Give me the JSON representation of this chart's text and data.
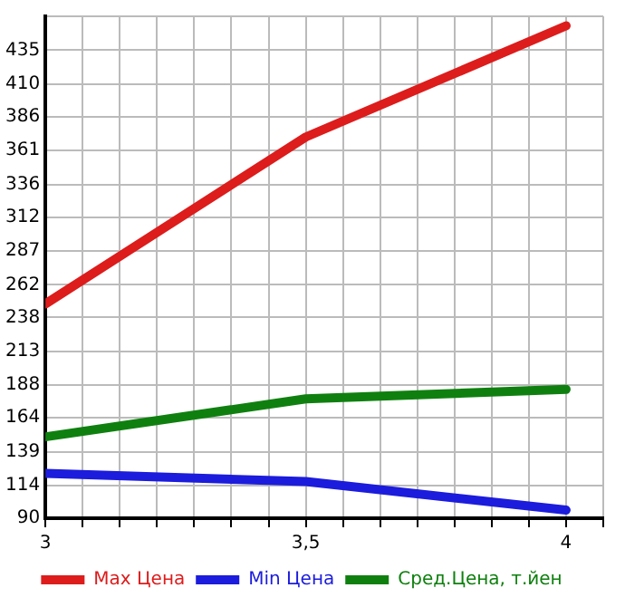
{
  "chart_data": {
    "type": "line",
    "x": [
      3,
      3.5,
      4
    ],
    "xlim": [
      3,
      4.0714
    ],
    "xticks": [
      3,
      {
        "value": 3.0714,
        "label": null
      },
      {
        "value": 3.1429,
        "label": null
      },
      {
        "value": 3.2143,
        "label": null
      },
      {
        "value": 3.2857,
        "label": null
      },
      {
        "value": 3.3571,
        "label": null
      },
      {
        "value": 3.4286,
        "label": null
      },
      {
        "value": 3.5,
        "label": "3,5"
      },
      {
        "value": 3.5714,
        "label": null
      },
      {
        "value": 3.6429,
        "label": null
      },
      {
        "value": 3.7143,
        "label": null
      },
      {
        "value": 3.7857,
        "label": null
      },
      {
        "value": 3.8571,
        "label": null
      },
      {
        "value": 3.9286,
        "label": null
      },
      4,
      {
        "value": 4.0714,
        "label": null
      }
    ],
    "ylim": [
      90,
      460
    ],
    "yticks": [
      90,
      114,
      139,
      164,
      188,
      213,
      238,
      262,
      287,
      312,
      336,
      361,
      386,
      410,
      435,
      {
        "value": 460,
        "label": null
      }
    ],
    "grid": true,
    "legend": "bottom",
    "marker": "none",
    "line_style": "solid",
    "series": [
      {
        "name": "Max Цена",
        "color": "#dd1c1c",
        "values": [
          248,
          371,
          453
        ]
      },
      {
        "name": "Min Цена",
        "color": "#1c1cdd",
        "values": [
          123,
          117,
          96
        ]
      },
      {
        "name": "Сред.Цена, т.йен",
        "color": "#0f800f",
        "values": [
          150,
          178,
          185
        ]
      }
    ]
  }
}
